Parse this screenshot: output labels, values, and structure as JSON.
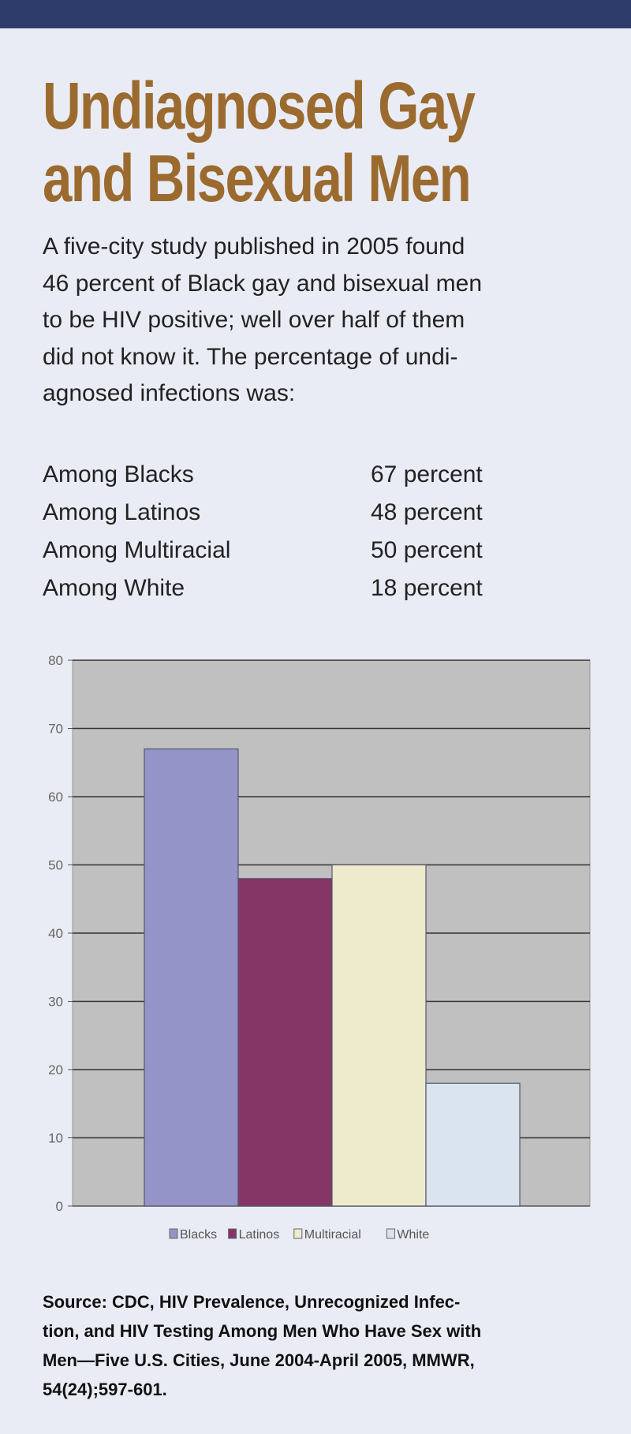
{
  "title_lines": [
    "Undiagnosed Gay",
    "and Bisexual Men"
  ],
  "intro_lines": [
    "A five-city study published in 2005 found",
    "46 percent of Black gay and bisexual men",
    "to be HIV positive; well over half of them",
    "did not know it. The percentage of undi-",
    "agnosed infections was:"
  ],
  "stats": [
    {
      "label": "Among Blacks",
      "value": "67 percent"
    },
    {
      "label": "Among Latinos",
      "value": "48 percent"
    },
    {
      "label": "Among Multiracial",
      "value": "50 percent"
    },
    {
      "label": "Among White",
      "value": "18 percent"
    }
  ],
  "chart_data": {
    "type": "bar",
    "title": "",
    "xlabel": "",
    "ylabel": "",
    "categories": [
      "Blacks",
      "Latinos",
      "Multiracial",
      "White"
    ],
    "values": [
      67,
      48,
      50,
      18
    ],
    "colors": [
      "#9494c8",
      "#853566",
      "#eeeacc",
      "#d9e4ef"
    ],
    "ylim": [
      0,
      80
    ],
    "yticks": [
      "0",
      "10",
      "20",
      "30",
      "40",
      "50",
      "60",
      "70",
      "80"
    ],
    "grid": true,
    "legend": "bottom",
    "plot_background": "#c0c0c0"
  },
  "source_lines": [
    "Source: CDC, HIV Prevalence, Unrecognized Infec-",
    "tion, and HIV Testing Among Men Who Have Sex with",
    "Men—Five U.S. Cities, June 2004-April 2005, MMWR,",
    "54(24);597-601."
  ]
}
